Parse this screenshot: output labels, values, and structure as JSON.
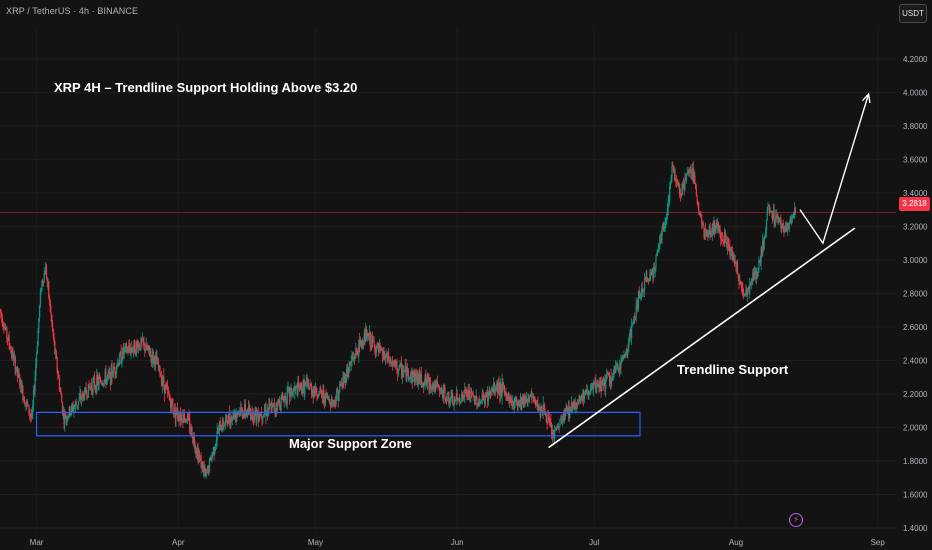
{
  "header": {
    "symbol": "XRP / TetherUS · 4h · BINANCE",
    "currency": "USDT"
  },
  "annotations": {
    "headline": "XRP 4H – Trendline Support Holding Above $3.20",
    "trendline_label": "Trendline Support",
    "zone_label": "Major Support Zone"
  },
  "price_badge": "3.2818",
  "colors": {
    "background": "#131313",
    "up": "#089981",
    "down": "#f23645",
    "zone": "#2962ff",
    "annotation": "#ffffff",
    "badge": "#f23645"
  },
  "icons": {
    "lightning": "lightning-icon"
  },
  "chart_data": {
    "type": "candlestick",
    "title": "XRP 4H – Trendline Support Holding Above $3.20",
    "y_ticks": [
      "4.2000",
      "4.0000",
      "3.8000",
      "3.6000",
      "3.4000",
      "3.2000",
      "3.0000",
      "2.8000",
      "2.6000",
      "2.4000",
      "2.2000",
      "2.0000",
      "1.8000",
      "1.6000",
      "1.4000"
    ],
    "x_ticks": [
      "Mar",
      "Apr",
      "May",
      "Jun",
      "Jul",
      "Aug",
      "Sep"
    ],
    "ylim": [
      1.37,
      4.45
    ],
    "x_range": [
      "2025-02-21",
      "2025-09-05"
    ],
    "last_price": 3.2818,
    "grid": true,
    "price_path": [
      [
        "2025-02-21",
        2.7
      ],
      [
        "2025-02-24",
        2.4
      ],
      [
        "2025-02-26",
        2.2
      ],
      [
        "2025-02-28",
        2.05
      ],
      [
        "2025-03-02",
        2.85
      ],
      [
        "2025-03-03",
        2.95
      ],
      [
        "2025-03-05",
        2.45
      ],
      [
        "2025-03-07",
        2.05
      ],
      [
        "2025-03-10",
        2.15
      ],
      [
        "2025-03-13",
        2.25
      ],
      [
        "2025-03-17",
        2.3
      ],
      [
        "2025-03-20",
        2.45
      ],
      [
        "2025-03-24",
        2.5
      ],
      [
        "2025-03-27",
        2.4
      ],
      [
        "2025-03-31",
        2.1
      ],
      [
        "2025-04-03",
        2.05
      ],
      [
        "2025-04-07",
        1.7
      ],
      [
        "2025-04-10",
        2.0
      ],
      [
        "2025-04-14",
        2.1
      ],
      [
        "2025-04-18",
        2.08
      ],
      [
        "2025-04-22",
        2.12
      ],
      [
        "2025-04-25",
        2.2
      ],
      [
        "2025-04-29",
        2.25
      ],
      [
        "2025-05-02",
        2.2
      ],
      [
        "2025-05-05",
        2.15
      ],
      [
        "2025-05-09",
        2.4
      ],
      [
        "2025-05-12",
        2.55
      ],
      [
        "2025-05-15",
        2.45
      ],
      [
        "2025-05-19",
        2.35
      ],
      [
        "2025-05-23",
        2.3
      ],
      [
        "2025-05-27",
        2.25
      ],
      [
        "2025-05-31",
        2.15
      ],
      [
        "2025-06-03",
        2.2
      ],
      [
        "2025-06-06",
        2.15
      ],
      [
        "2025-06-10",
        2.25
      ],
      [
        "2025-06-13",
        2.15
      ],
      [
        "2025-06-17",
        2.18
      ],
      [
        "2025-06-20",
        2.1
      ],
      [
        "2025-06-22",
        1.95
      ],
      [
        "2025-06-25",
        2.1
      ],
      [
        "2025-06-29",
        2.2
      ],
      [
        "2025-07-02",
        2.25
      ],
      [
        "2025-07-05",
        2.3
      ],
      [
        "2025-07-08",
        2.45
      ],
      [
        "2025-07-11",
        2.8
      ],
      [
        "2025-07-14",
        2.95
      ],
      [
        "2025-07-17",
        3.3
      ],
      [
        "2025-07-18",
        3.55
      ],
      [
        "2025-07-20",
        3.4
      ],
      [
        "2025-07-22",
        3.55
      ],
      [
        "2025-07-23",
        3.45
      ],
      [
        "2025-07-25",
        3.15
      ],
      [
        "2025-07-28",
        3.2
      ],
      [
        "2025-07-31",
        3.05
      ],
      [
        "2025-08-02",
        2.85
      ],
      [
        "2025-08-03",
        2.8
      ],
      [
        "2025-08-06",
        2.95
      ],
      [
        "2025-08-07",
        3.1
      ],
      [
        "2025-08-08",
        3.3
      ],
      [
        "2025-08-10",
        3.25
      ],
      [
        "2025-08-12",
        3.18
      ],
      [
        "2025-08-14",
        3.28
      ]
    ],
    "support_zone": {
      "from": "2025-03-01",
      "to": "2025-07-11",
      "low": 1.95,
      "high": 2.09,
      "label": "Major Support Zone"
    },
    "trendline": {
      "from": [
        "2025-06-21",
        1.88
      ],
      "to": [
        "2025-08-27",
        3.19
      ],
      "label": "Trendline Support"
    },
    "projection": [
      [
        "2025-08-15",
        3.3
      ],
      [
        "2025-08-20",
        3.1
      ],
      [
        "2025-08-30",
        3.99
      ]
    ]
  }
}
